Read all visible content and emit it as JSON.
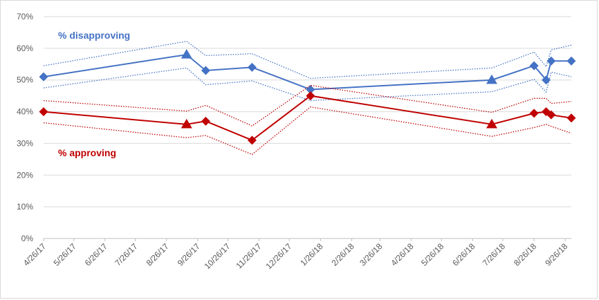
{
  "chart_data": {
    "type": "line",
    "title": "",
    "xlabel": "",
    "ylabel": "",
    "ylim": [
      0,
      70
    ],
    "y_ticks": [
      "0%",
      "10%",
      "20%",
      "30%",
      "40%",
      "50%",
      "60%",
      "70%"
    ],
    "y_tick_values": [
      0,
      10,
      20,
      30,
      40,
      50,
      60,
      70
    ],
    "x_tick_labels": [
      "4/26/17",
      "5/26/17",
      "6/26/17",
      "7/26/17",
      "8/26/17",
      "9/26/17",
      "10/26/17",
      "11/26/17",
      "12/26/17",
      "1/26/18",
      "2/26/18",
      "3/26/18",
      "4/26/18",
      "5/26/18",
      "6/26/18",
      "7/26/18",
      "8/26/18",
      "9/26/18"
    ],
    "x_tick_dates": [
      "2017-04-26",
      "2017-05-26",
      "2017-06-26",
      "2017-07-26",
      "2017-08-26",
      "2017-09-26",
      "2017-10-26",
      "2017-11-26",
      "2017-12-26",
      "2018-01-26",
      "2018-02-26",
      "2018-03-26",
      "2018-04-26",
      "2018-05-26",
      "2018-06-26",
      "2018-07-26",
      "2018-08-26",
      "2018-09-26"
    ],
    "xlim": [
      "2017-04-26",
      "2018-10-02"
    ],
    "grid": "horizontal",
    "legend": "none",
    "series": [
      {
        "name": "% disapproving",
        "color": "#4472c4",
        "x": [
          "2017-04-26",
          "2017-09-15",
          "2017-10-04",
          "2017-11-19",
          "2018-01-16",
          "2018-07-15",
          "2018-08-26",
          "2018-09-07",
          "2018-09-12",
          "2018-10-02"
        ],
        "values": [
          51,
          58,
          53,
          54,
          47,
          50,
          54.5,
          50,
          56,
          56
        ],
        "markers": [
          "diamond",
          "triangle",
          "diamond",
          "diamond",
          "diamond",
          "triangle",
          "diamond",
          "diamond",
          "diamond",
          "diamond"
        ],
        "upper": [
          54.5,
          62.2,
          57.7,
          58.3,
          50.5,
          53.8,
          58.8,
          54.2,
          59.5,
          61
        ],
        "lower": [
          47.5,
          53.8,
          48.5,
          49.7,
          43.5,
          46.3,
          50.2,
          46.2,
          52.5,
          51
        ]
      },
      {
        "name": "% approving",
        "color": "#c00000",
        "x": [
          "2017-04-26",
          "2017-09-15",
          "2017-10-04",
          "2017-11-19",
          "2018-01-16",
          "2018-07-15",
          "2018-08-26",
          "2018-09-07",
          "2018-09-12",
          "2018-10-02"
        ],
        "values": [
          40,
          36,
          37,
          31,
          45,
          36,
          39.5,
          40,
          39,
          38
        ],
        "markers": [
          "diamond",
          "triangle",
          "diamond",
          "diamond",
          "diamond",
          "triangle",
          "diamond",
          "diamond",
          "diamond",
          "diamond"
        ],
        "upper": [
          43.5,
          40.2,
          42,
          35.5,
          48.3,
          39.8,
          44.2,
          44.2,
          42.6,
          43.2
        ],
        "lower": [
          36.5,
          31.8,
          32.5,
          26.5,
          41.5,
          32.2,
          35,
          36,
          35.4,
          33.2
        ]
      }
    ]
  }
}
